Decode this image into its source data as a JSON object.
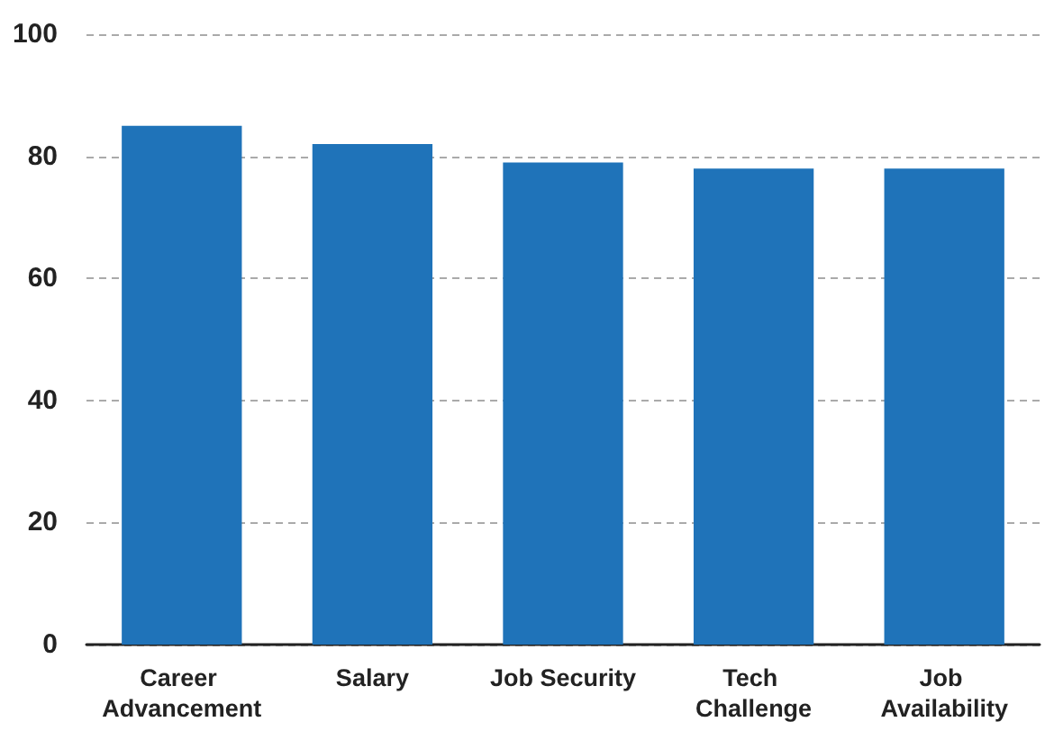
{
  "chart_data": {
    "type": "bar",
    "categories": [
      "Career Advancement",
      "Salary",
      "Job Security",
      "Tech Challenge",
      "Job Availability"
    ],
    "values": [
      85,
      82,
      79,
      78,
      78
    ],
    "color": "#1f73b9",
    "ylim": [
      0,
      100
    ],
    "yticks": [
      0,
      20,
      40,
      60,
      80,
      100
    ],
    "grid": "y"
  }
}
